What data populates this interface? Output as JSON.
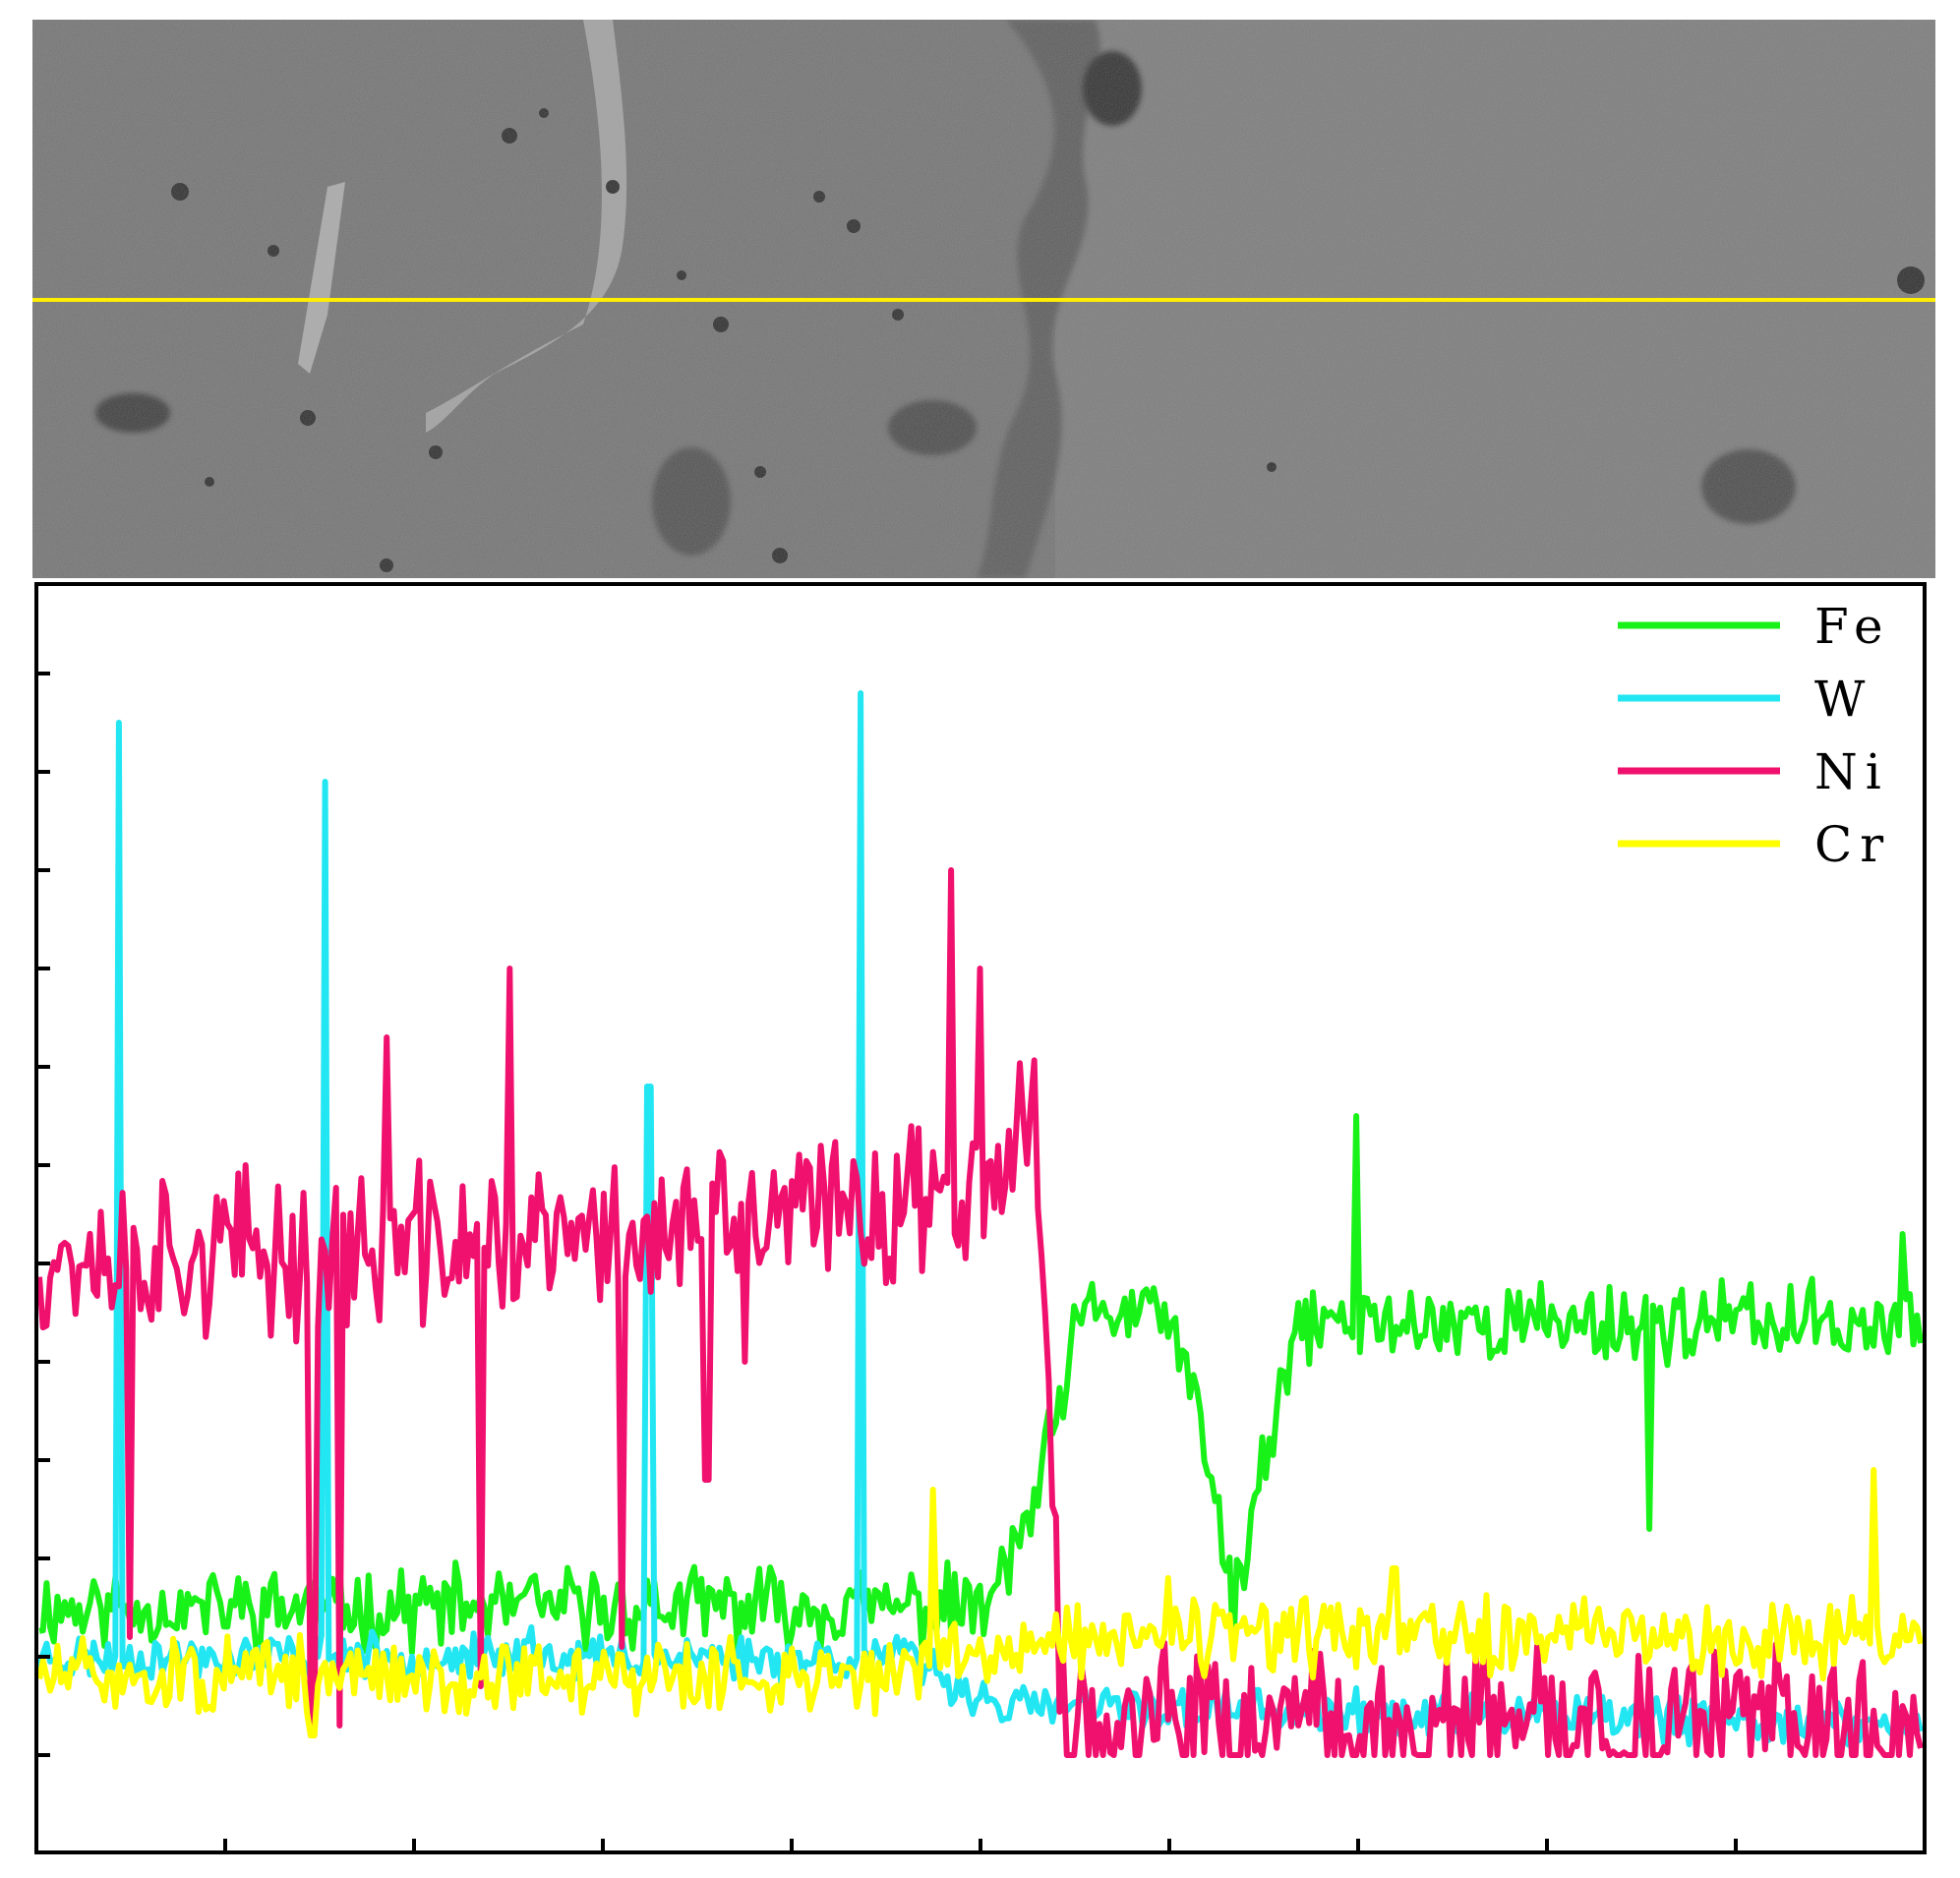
{
  "chart_data": {
    "type": "line",
    "title": "",
    "xlabel": "",
    "ylabel": "",
    "x_range": [
      0,
      10
    ],
    "ylim": [
      0,
      11
    ],
    "grid": false,
    "legend_placement": "top-right",
    "tick_labels_shown": false,
    "image_panel": {
      "kind": "SEM micrograph with line-scan marker",
      "scan_line_color": "#ffee00"
    },
    "series": [
      {
        "name": "Fe",
        "color": "#19f219",
        "baseline": [
          [
            0,
            1.5
          ],
          [
            5.05,
            1.5
          ],
          [
            5.3,
            2.6
          ],
          [
            5.55,
            4.5
          ],
          [
            6.0,
            4.5
          ],
          [
            6.2,
            3.1
          ],
          [
            6.35,
            1.6
          ],
          [
            6.55,
            3.2
          ],
          [
            6.7,
            4.4
          ],
          [
            10,
            4.4
          ]
        ],
        "amp": 0.32,
        "seed": 11,
        "spikes": [
          [
            6.35,
            1.0
          ],
          [
            6.48,
            2.7
          ],
          [
            7.0,
            6.5
          ],
          [
            8.55,
            2.3
          ],
          [
            9.9,
            5.3
          ]
        ]
      },
      {
        "name": "W",
        "color": "#22e6f2",
        "baseline": [
          [
            0,
            1.0
          ],
          [
            4.6,
            1.0
          ],
          [
            5.1,
            0.5
          ],
          [
            10,
            0.3
          ]
        ],
        "amp": 0.18,
        "seed": 23,
        "spikes": [
          [
            0.42,
            10.5
          ],
          [
            1.52,
            9.9
          ],
          [
            2.62,
            1.3
          ],
          [
            3.24,
            6.8
          ],
          [
            4.36,
            10.8
          ]
        ]
      },
      {
        "name": "Ni",
        "color": "#f0106e",
        "baseline": [
          [
            0,
            5.1
          ],
          [
            1.5,
            5.1
          ],
          [
            3.5,
            5.3
          ],
          [
            4.7,
            5.7
          ],
          [
            5.3,
            6.3
          ],
          [
            5.45,
            0.25
          ],
          [
            10,
            0.25
          ]
        ],
        "amp": 0.65,
        "seed": 37,
        "spikes": [
          [
            0.48,
            1.2
          ],
          [
            1.45,
            0.2
          ],
          [
            1.6,
            0.3
          ],
          [
            1.85,
            7.3
          ],
          [
            2.35,
            0.7
          ],
          [
            2.5,
            8.0
          ],
          [
            3.1,
            1.1
          ],
          [
            3.55,
            2.8
          ],
          [
            3.75,
            4.0
          ],
          [
            4.5,
            4.8
          ],
          [
            4.85,
            9.0
          ],
          [
            5.0,
            8.0
          ],
          [
            5.35,
            4.5
          ]
        ]
      },
      {
        "name": "Cr",
        "color": "#ffff00",
        "baseline": [
          [
            0,
            0.8
          ],
          [
            4.4,
            0.8
          ],
          [
            5.4,
            1.2
          ],
          [
            10,
            1.2
          ]
        ],
        "amp": 0.3,
        "seed": 51,
        "spikes": [
          [
            1.45,
            0.2
          ],
          [
            4.75,
            2.7
          ],
          [
            6.0,
            1.8
          ],
          [
            7.2,
            1.9
          ],
          [
            9.75,
            2.9
          ]
        ]
      }
    ]
  }
}
